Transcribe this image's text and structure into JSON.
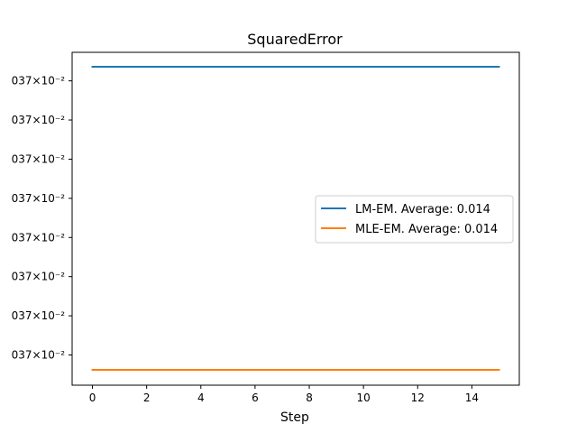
{
  "chart_data": {
    "type": "line",
    "title": "SquaredError",
    "xlabel": "Step",
    "ylabel": "",
    "x": [
      0,
      15
    ],
    "xlim": [
      -0.75,
      15.75
    ],
    "xticks": [
      0,
      2,
      4,
      6,
      8,
      10,
      12,
      14
    ],
    "yticks": [
      0,
      1,
      2,
      3,
      4,
      5,
      6,
      7
    ],
    "ytick_labels": [
      "037×10⁻²",
      "037×10⁻²",
      "037×10⁻²",
      "037×10⁻²",
      "037×10⁻²",
      "037×10⁻²",
      "037×10⁻²",
      "037×10⁻²"
    ],
    "ylim": [
      -0.38,
      7.36
    ],
    "grid": false,
    "legend_position": "center-right",
    "series": [
      {
        "name": "LM-EM. Average: 0.014",
        "color": "#1f77b4",
        "values": [
          7.36,
          7.36
        ]
      },
      {
        "name": "MLE-EM. Average: 0.014",
        "color": "#ff7f0e",
        "values": [
          -0.38,
          -0.38
        ]
      }
    ]
  }
}
